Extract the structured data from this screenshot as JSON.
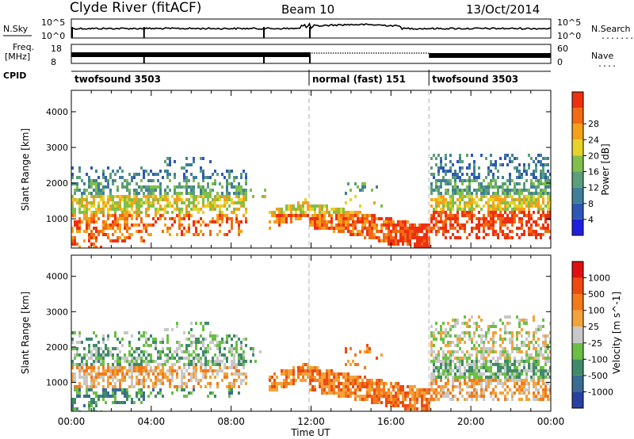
{
  "header": {
    "title": "Clyde River (fitACF)",
    "beam": "Beam 10",
    "date": "13/Oct/2014"
  },
  "top_panels": {
    "nsky": {
      "label": "N.Sky",
      "ticks": [
        "10^5",
        "10^0"
      ],
      "right_ticks": [
        "10^5",
        "10^0"
      ],
      "right_label": "N.Search",
      "right_marker": "......."
    },
    "freq": {
      "label_line1": "Freq.",
      "label_line2": "[MHz]",
      "ticks": [
        "18",
        "8"
      ],
      "right_ticks": [
        "60",
        "0"
      ],
      "right_label": "Nave",
      "right_marker": "...."
    },
    "cpid": {
      "label": "CPID",
      "segments": [
        {
          "name": "twofsound 3503",
          "start": 0.0,
          "end": 11.9
        },
        {
          "name": "normal (fast) 151",
          "start": 11.9,
          "end": 17.9
        },
        {
          "name": "twofsound 3503",
          "start": 17.9,
          "end": 24.0
        }
      ]
    }
  },
  "chart_data": [
    {
      "type": "heatmap",
      "panel": "power",
      "xlabel": "",
      "ylabel": "Slant Range [km]",
      "xlim": [
        0,
        24
      ],
      "ylim": [
        180,
        4600
      ],
      "yticks": [
        1000,
        2000,
        3000,
        4000
      ],
      "colorbar": {
        "label": "Power [dB]",
        "tick_labels": [
          "4",
          "8",
          "12",
          "16",
          "20",
          "24",
          "28"
        ],
        "colors": [
          "#1f1fe0",
          "#2d57b4",
          "#3f7f9a",
          "#5a9e7a",
          "#7fbf4a",
          "#e6d22a",
          "#f5a01a",
          "#f26a12",
          "#ee3010"
        ]
      },
      "dashed_lines_x": [
        11.9,
        17.9
      ]
    },
    {
      "type": "heatmap",
      "panel": "velocity",
      "xlabel": "Time UT",
      "ylabel": "Slant Range [km]",
      "xlim": [
        0,
        24
      ],
      "ylim": [
        180,
        4600
      ],
      "yticks": [
        1000,
        2000,
        3000,
        4000
      ],
      "xticks": [
        "00:00",
        "04:00",
        "08:00",
        "12:00",
        "16:00",
        "20:00",
        "00:00"
      ],
      "colorbar": {
        "label": "Velocity [m s^-1]",
        "tick_labels": [
          "1000",
          "500",
          "100",
          "25",
          "-25",
          "-100",
          "-500",
          "-1000"
        ],
        "colors": [
          "#2a3fa0",
          "#3a6b95",
          "#3f8a6a",
          "#6cbf45",
          "#c8c8c8",
          "#f4a23a",
          "#f27a1a",
          "#ee4a12",
          "#e01010"
        ]
      },
      "dashed_lines_x": [
        11.9,
        17.9
      ]
    }
  ],
  "colors": {
    "frame": "#000000",
    "dashed": "#b0b0b0"
  }
}
